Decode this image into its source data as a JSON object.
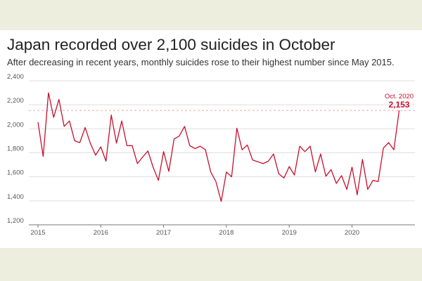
{
  "chart_data": {
    "type": "line",
    "title": "Japan recorded over 2,100 suicides in October",
    "subtitle": "After decreasing in recent years, monthly suicides rose to their highest number since May 2015.",
    "xlabel": "",
    "ylabel": "",
    "ylim": [
      1200,
      2400
    ],
    "y_ticks": [
      1200,
      1400,
      1600,
      1800,
      2000,
      2200,
      2400
    ],
    "y_tick_labels": [
      "1,200",
      "1,400",
      "1,600",
      "1,800",
      "2,000",
      "2,200",
      "2,400"
    ],
    "x_ticks": [
      "2015",
      "2016",
      "2017",
      "2018",
      "2019",
      "2020"
    ],
    "grid": true,
    "line_color": "#c8102e",
    "reference_line": 2153,
    "annotation": {
      "label": "Oct. 2020",
      "value": "2,153"
    },
    "series": [
      {
        "start": "2015-01",
        "values": [
          2055,
          1770,
          2300,
          2095,
          2245,
          2020,
          2065,
          1900,
          1885,
          2010,
          1880,
          1780,
          1850,
          1730,
          2115,
          1880,
          2065,
          1860,
          1860,
          1710,
          1765,
          1815,
          1680,
          1570,
          1810,
          1645,
          1915,
          1940,
          2020,
          1860,
          1835,
          1855,
          1825,
          1640,
          1560,
          1395,
          1640,
          1600,
          2005,
          1825,
          1865,
          1740,
          1725,
          1710,
          1730,
          1790,
          1625,
          1590,
          1685,
          1615,
          1855,
          1810,
          1855,
          1640,
          1790,
          1605,
          1660,
          1545,
          1610,
          1495,
          1680,
          1450,
          1745,
          1495,
          1570,
          1560,
          1840,
          1885,
          1825,
          2153
        ]
      }
    ]
  }
}
